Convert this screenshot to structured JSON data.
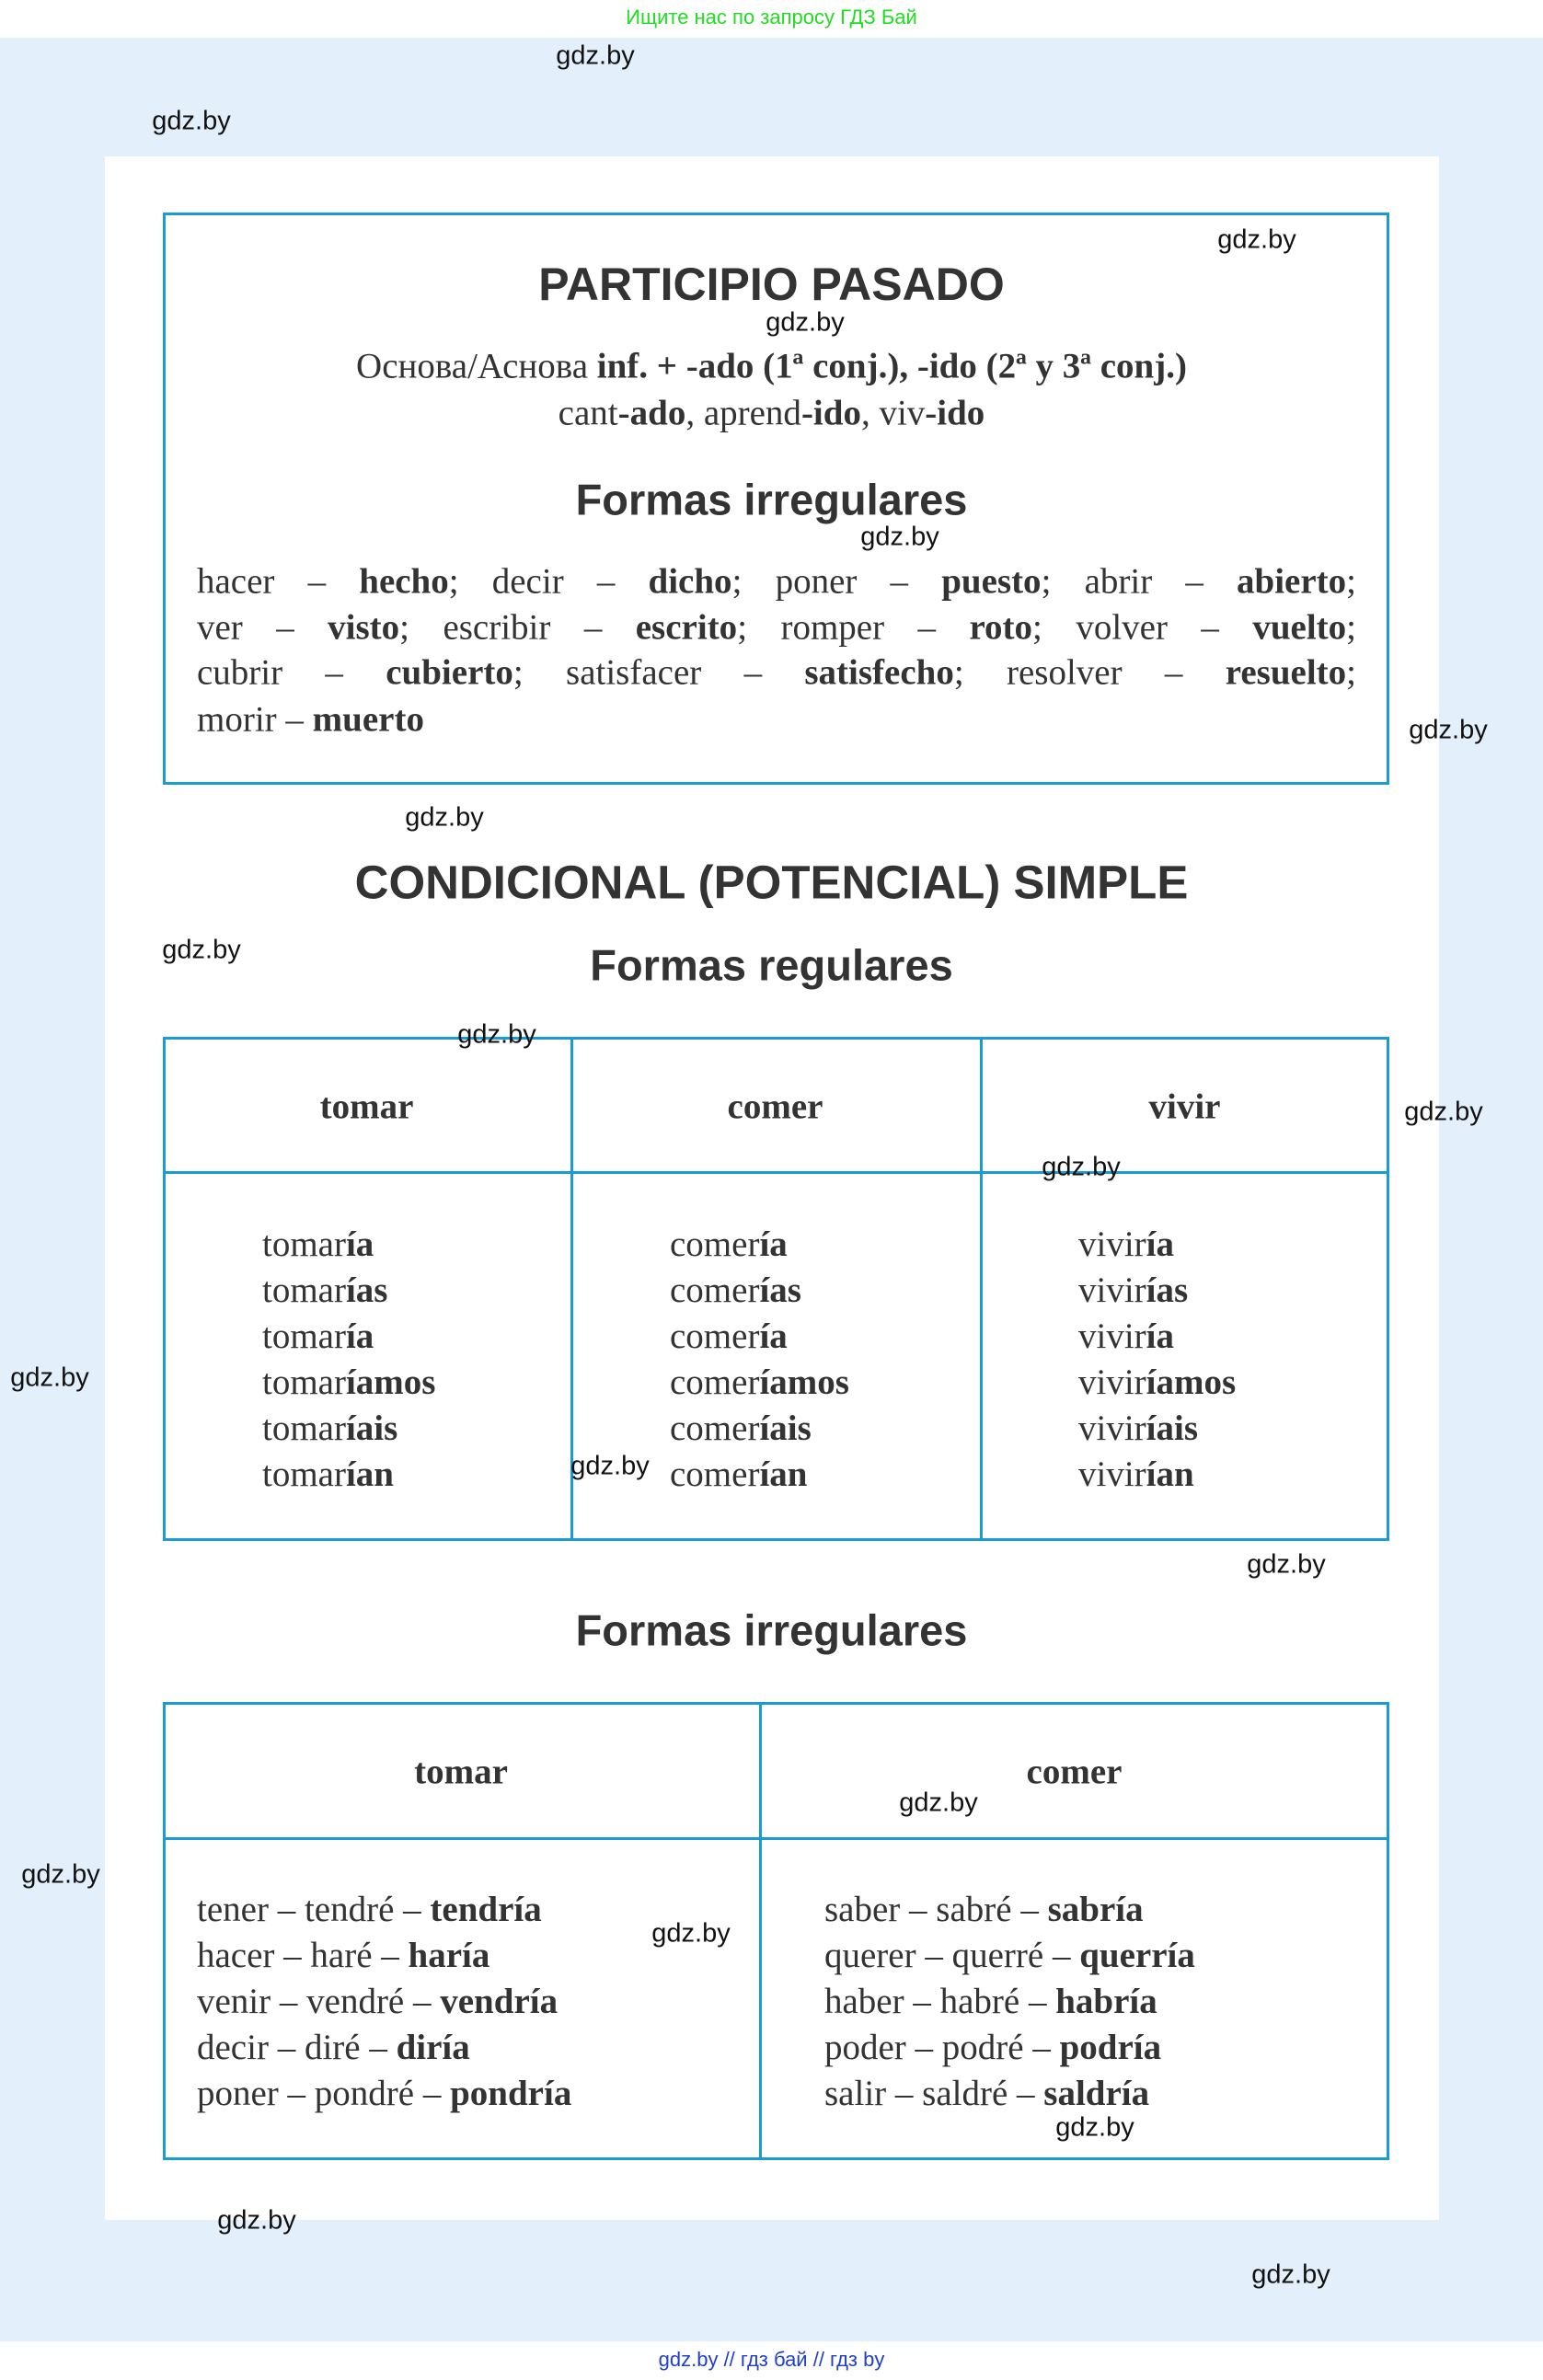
{
  "top_banner": "Ищите нас по запросу ГДЗ Бай",
  "bottom_banner": "gdz.by  //  гдз бай  //  гдз by",
  "colors": {
    "border": "#1a9bd7",
    "background": "#e3effb",
    "banner_green": "#22dd22",
    "banner_blue": "#1f3fcf"
  },
  "participio": {
    "title": "PARTICIPIO PASADO",
    "rule": [
      {
        "t": "Основа/Аснова ",
        "b": false
      },
      {
        "t": "inf. + -ado (1ª conj.), -ido (2ª y 3ª conj.)",
        "b": true
      }
    ],
    "examples": [
      {
        "t": "cant",
        "b": false
      },
      {
        "t": "-ado",
        "b": true
      },
      {
        "t": ", aprend",
        "b": false
      },
      {
        "t": "-ido",
        "b": true
      },
      {
        "t": ", viv",
        "b": false
      },
      {
        "t": "-ido",
        "b": true
      }
    ],
    "irregular_title": "Formas irregulares",
    "irregular_lines": [
      [
        {
          "t": "hacer – ",
          "b": false
        },
        {
          "t": "hecho",
          "b": true
        },
        {
          "t": "; decir – ",
          "b": false
        },
        {
          "t": "dicho",
          "b": true
        },
        {
          "t": "; poner – ",
          "b": false
        },
        {
          "t": "puesto",
          "b": true
        },
        {
          "t": "; abrir – ",
          "b": false
        },
        {
          "t": "abierto",
          "b": true
        },
        {
          "t": ";",
          "b": false
        }
      ],
      [
        {
          "t": "ver – ",
          "b": false
        },
        {
          "t": "visto",
          "b": true
        },
        {
          "t": "; escribir – ",
          "b": false
        },
        {
          "t": "escrito",
          "b": true
        },
        {
          "t": "; romper – ",
          "b": false
        },
        {
          "t": "roto",
          "b": true
        },
        {
          "t": "; volver – ",
          "b": false
        },
        {
          "t": "vuelto",
          "b": true
        },
        {
          "t": ";",
          "b": false
        }
      ],
      [
        {
          "t": "cubrir – ",
          "b": false
        },
        {
          "t": "cubierto",
          "b": true
        },
        {
          "t": "; satisfacer – ",
          "b": false
        },
        {
          "t": "satisfecho",
          "b": true
        },
        {
          "t": "; resolver – ",
          "b": false
        },
        {
          "t": "resuelto",
          "b": true
        },
        {
          "t": ";",
          "b": false
        }
      ],
      [
        {
          "t": "morir – ",
          "b": false
        },
        {
          "t": "muerto",
          "b": true
        }
      ]
    ]
  },
  "condicional": {
    "title": "CONDICIONAL (POTENCIAL) SIMPLE",
    "regular_title": "Formas regulares",
    "regular": [
      {
        "verb": "tomar",
        "stem": "tomar",
        "endings": [
          "ía",
          "ías",
          "ía",
          "íamos",
          "íais",
          "ían"
        ]
      },
      {
        "verb": "comer",
        "stem": "comer",
        "endings": [
          "ía",
          "ías",
          "ía",
          "íamos",
          "íais",
          "ían"
        ]
      },
      {
        "verb": "vivir",
        "stem": "vivir",
        "endings": [
          "ía",
          "ías",
          "ía",
          "íamos",
          "íais",
          "ían"
        ]
      }
    ],
    "irregular_title": "Formas irregulares",
    "irregular_headers": [
      "tomar",
      "comer"
    ],
    "irregular": [
      [
        {
          "pre": "tener – tendré – ",
          "form": "tendría"
        },
        {
          "pre": "hacer – haré – ",
          "form": "haría"
        },
        {
          "pre": "venir – vendré – ",
          "form": "vendría"
        },
        {
          "pre": "decir – diré – ",
          "form": "diría"
        },
        {
          "pre": "poner – pondré – ",
          "form": "pondría"
        }
      ],
      [
        {
          "pre": "saber – sabré – ",
          "form": "sabría"
        },
        {
          "pre": "querer – querré – ",
          "form": "querría"
        },
        {
          "pre": "haber – habré – ",
          "form": "habría"
        },
        {
          "pre": "poder – podré – ",
          "form": "podría"
        },
        {
          "pre": "salir – saldré – ",
          "form": "saldría"
        }
      ]
    ]
  },
  "watermark": "gdz.by"
}
